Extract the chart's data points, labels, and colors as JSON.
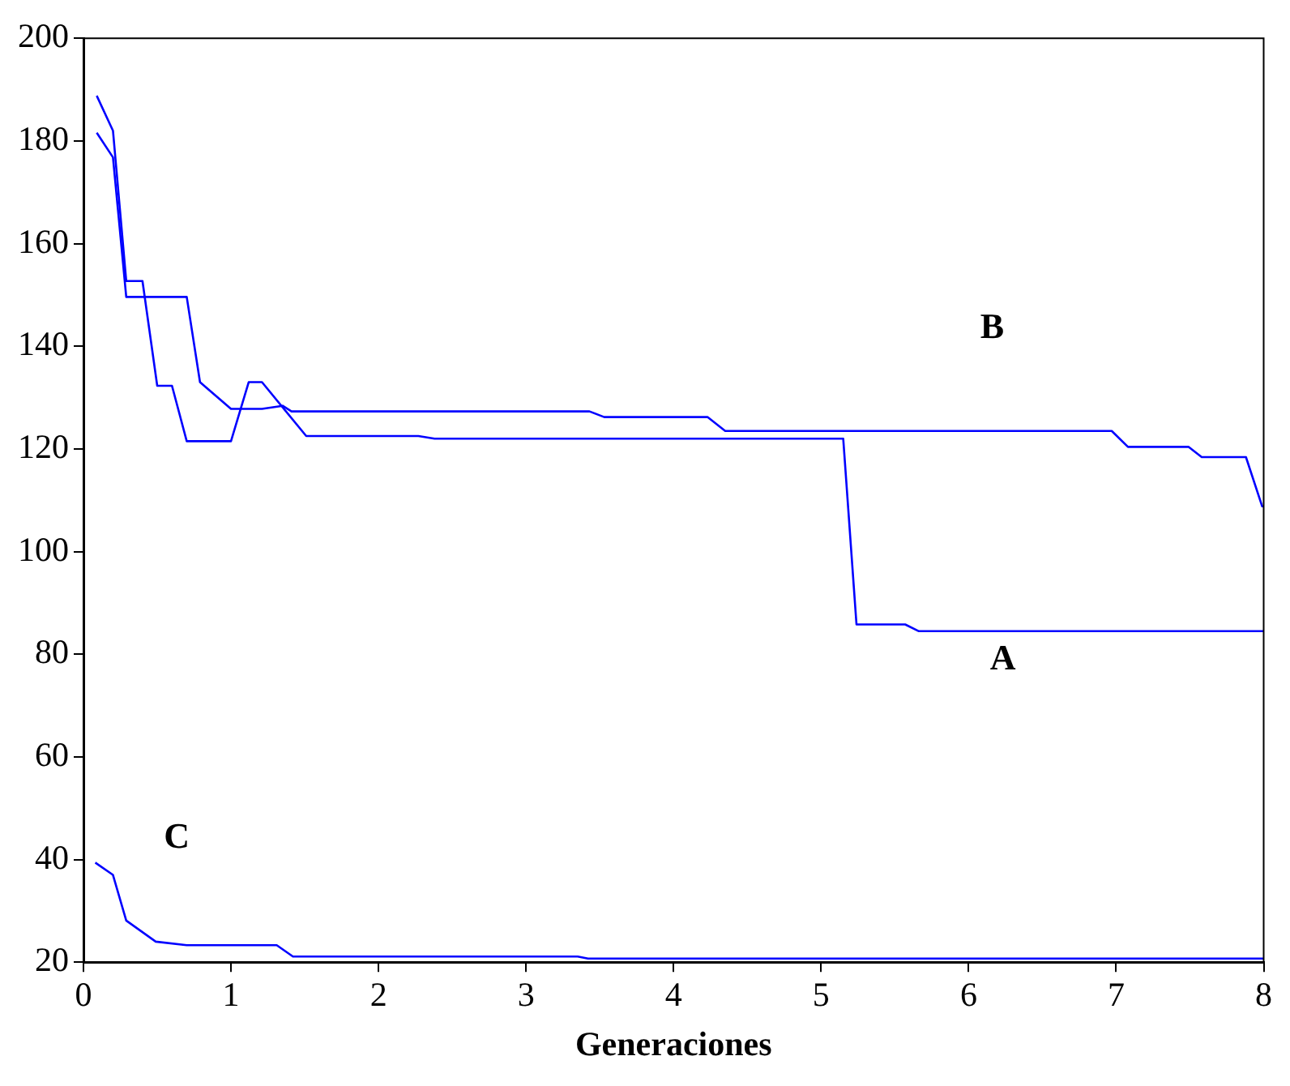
{
  "chart_data": {
    "type": "line",
    "xlabel": "Generaciones",
    "xlim": [
      0,
      8
    ],
    "xticks": [
      0,
      1,
      2,
      3,
      4,
      5,
      6,
      7,
      8
    ],
    "ylim": [
      20,
      200
    ],
    "yticks": [
      20,
      40,
      60,
      80,
      100,
      120,
      140,
      160,
      180,
      200
    ],
    "grid": false,
    "legend": false,
    "marker": "none",
    "line_style": "solid",
    "series": [
      {
        "name": "A",
        "color": "#0000ff",
        "x": [
          0.09,
          0.2,
          0.29,
          0.4,
          0.5,
          0.6,
          0.7,
          1.0,
          1.12,
          1.21,
          1.51,
          2.27,
          2.38,
          5.15,
          5.24,
          5.57,
          5.66,
          8
        ],
        "values": [
          188.8,
          182,
          152.7,
          152.7,
          132.3,
          132.3,
          121.5,
          121.5,
          133,
          133,
          122.5,
          122.5,
          122,
          122,
          85.8,
          85.8,
          84.5,
          84.5
        ]
      },
      {
        "name": "B",
        "color": "#0000ff",
        "x": [
          0.09,
          0.2,
          0.29,
          0.7,
          0.79,
          1.0,
          1.21,
          1.35,
          1.41,
          3.43,
          3.53,
          4.23,
          4.35,
          6.97,
          7.08,
          7.49,
          7.58,
          7.88,
          7.99,
          8
        ],
        "values": [
          181.6,
          176.8,
          149.6,
          149.6,
          133,
          127.8,
          127.8,
          128.4,
          127.3,
          127.3,
          126.2,
          126.2,
          123.5,
          123.5,
          120.4,
          120.4,
          118.4,
          118.4,
          108.8,
          108.8
        ]
      },
      {
        "name": "C",
        "color": "#0000ff",
        "x": [
          0.08,
          0.2,
          0.29,
          0.49,
          0.7,
          1.31,
          1.42,
          3.35,
          3.42,
          8
        ],
        "values": [
          39.4,
          37,
          28.1,
          24,
          23.3,
          23.3,
          21.1,
          21.1,
          20.7,
          20.7
        ]
      }
    ]
  }
}
